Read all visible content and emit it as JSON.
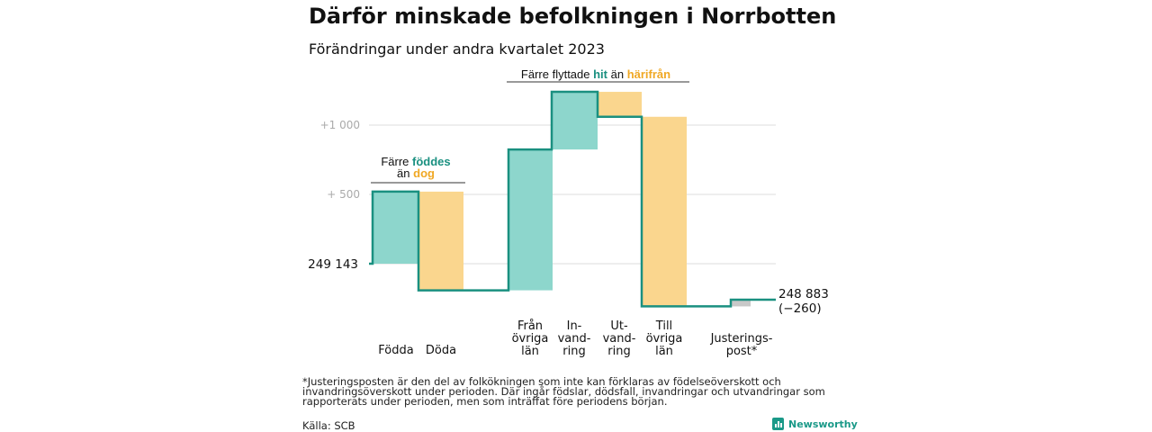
{
  "title": "Därför minskade befolkningen i Norrbotten",
  "subtitle": "Förändringar under andra kvartalet 2023",
  "footnote": "*Justeringsposten är den del av folkökningen som inte kan förklaras av födelseöverskott och invandringsöverskott under perioden. Där ingår födslar, dödsfall, invandringar och utvandringar som rapporterats under perioden, men som inträffat före periodens början.",
  "source": "Källa: SCB",
  "brand": "Newsworthy",
  "colors": {
    "increase": "#8dd6cc",
    "decrease": "#fad68e",
    "adjustment": "#c8c8c8",
    "line": "#1a9080",
    "teal_text": "#1a9080",
    "orange_text": "#f0a824"
  },
  "annotations": {
    "birth_deaths": {
      "line1_a": "Färre ",
      "line1_b": "föddes",
      "line2_a": "än ",
      "line2_b": "dog"
    },
    "migration": {
      "a": "Färre flyttade ",
      "b": "hit",
      "c": " än ",
      "d": "härifrån"
    }
  },
  "start_label": "249 143",
  "end_label": "248 883",
  "end_change": "(−260)",
  "chart_data": {
    "type": "waterfall",
    "baseline": 249143,
    "y_ticks": [
      {
        "value": 500,
        "label": "+ 500"
      },
      {
        "value": 1000,
        "label": "+1 000"
      }
    ],
    "steps": [
      {
        "label": [
          "Födda"
        ],
        "value": 520,
        "kind": "increase"
      },
      {
        "label": [
          "Döda"
        ],
        "value": -712,
        "kind": "decrease"
      },
      {
        "label": [
          "Från",
          "övriga",
          "län"
        ],
        "value": 1016,
        "kind": "increase"
      },
      {
        "label": [
          "In-",
          "vand-",
          "ring"
        ],
        "value": 416,
        "kind": "increase"
      },
      {
        "label": [
          "Ut-",
          "vand-",
          "ring"
        ],
        "value": -180,
        "kind": "decrease"
      },
      {
        "label": [
          "Till",
          "övriga",
          "län"
        ],
        "value": -1368,
        "kind": "decrease"
      },
      {
        "label": [
          "Justerings-",
          "post*"
        ],
        "value": 48,
        "kind": "adjustment"
      }
    ],
    "end_value": 248883,
    "net_change": -260,
    "ylim": [
      -350,
      1300
    ]
  }
}
